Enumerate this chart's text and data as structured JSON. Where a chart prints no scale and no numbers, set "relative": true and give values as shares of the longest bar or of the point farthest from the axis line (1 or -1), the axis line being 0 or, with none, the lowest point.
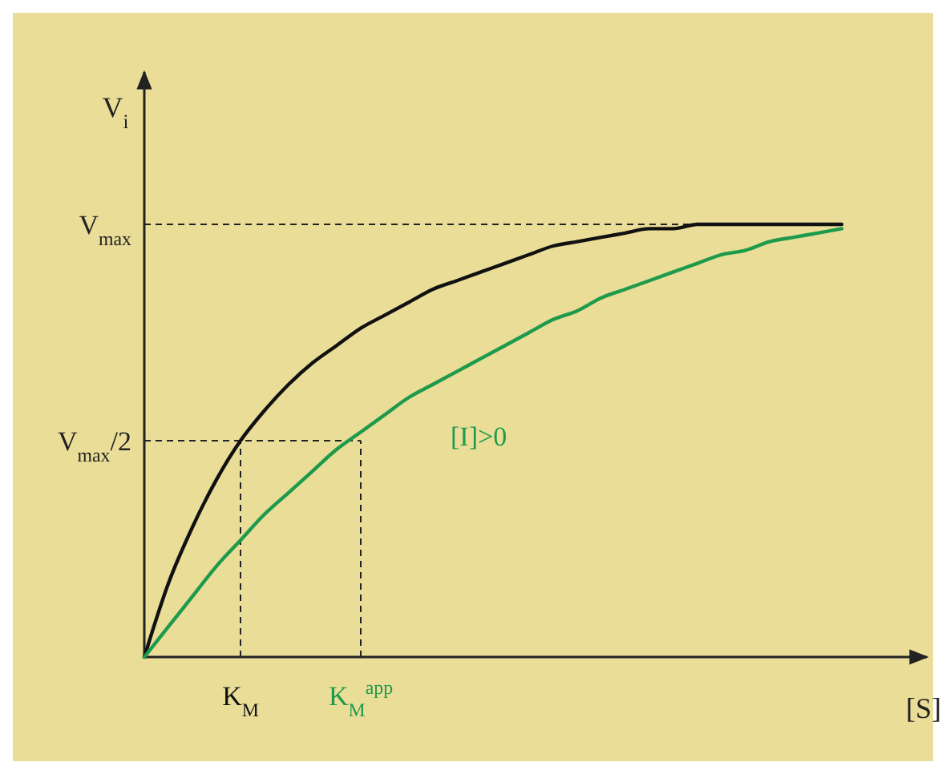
{
  "chart_data": {
    "type": "line",
    "relative": true,
    "xlabel": "[S]",
    "ylabel": "V$_{i}$",
    "categories": [
      null,
      null,
      null,
      null,
      "K$_{M}$",
      null,
      null,
      null,
      null,
      "K$_{M}$$^{app}$",
      null,
      null,
      null,
      null,
      null,
      null,
      null,
      null,
      null,
      null,
      null,
      null,
      null,
      null,
      null,
      null,
      null,
      null,
      null,
      null
    ],
    "series": [
      {
        "color": "#111111",
        "values": [
          0,
          0.17,
          0.3,
          0.41,
          0.5,
          0.57,
          0.63,
          0.68,
          0.72,
          0.76,
          0.79,
          0.82,
          0.85,
          0.87,
          0.89,
          0.91,
          0.93,
          0.95,
          0.96,
          0.97,
          0.98,
          0.99,
          0.99,
          1,
          1,
          1,
          1,
          1,
          1,
          1
        ]
      },
      {
        "name": "[I]>0",
        "color": "#1e9a4c",
        "values": [
          0,
          0.07,
          0.14,
          0.21,
          0.27,
          0.33,
          0.38,
          0.43,
          0.48,
          0.52,
          0.56,
          0.6,
          0.63,
          0.66,
          0.69,
          0.72,
          0.75,
          0.78,
          0.8,
          0.83,
          0.85,
          0.87,
          0.89,
          0.91,
          0.93,
          0.94,
          0.96,
          0.97,
          0.98,
          0.99
        ]
      }
    ],
    "ref_lines": [
      {
        "axis": "y",
        "value": 1,
        "label": "V$_{max}$",
        "line_style": "dashed"
      },
      {
        "axis": "y",
        "value": 0.5,
        "label": "V$_{max}$/2",
        "line_style": "dashed"
      },
      {
        "axis": "x",
        "value": "K$_{M}$",
        "line_style": "dashed"
      },
      {
        "axis": "x",
        "value": "K$_{M}$$^{app}$",
        "line_style": "dashed"
      }
    ],
    "grid": false,
    "legend": false,
    "marker": "none",
    "line_style": "solid"
  }
}
